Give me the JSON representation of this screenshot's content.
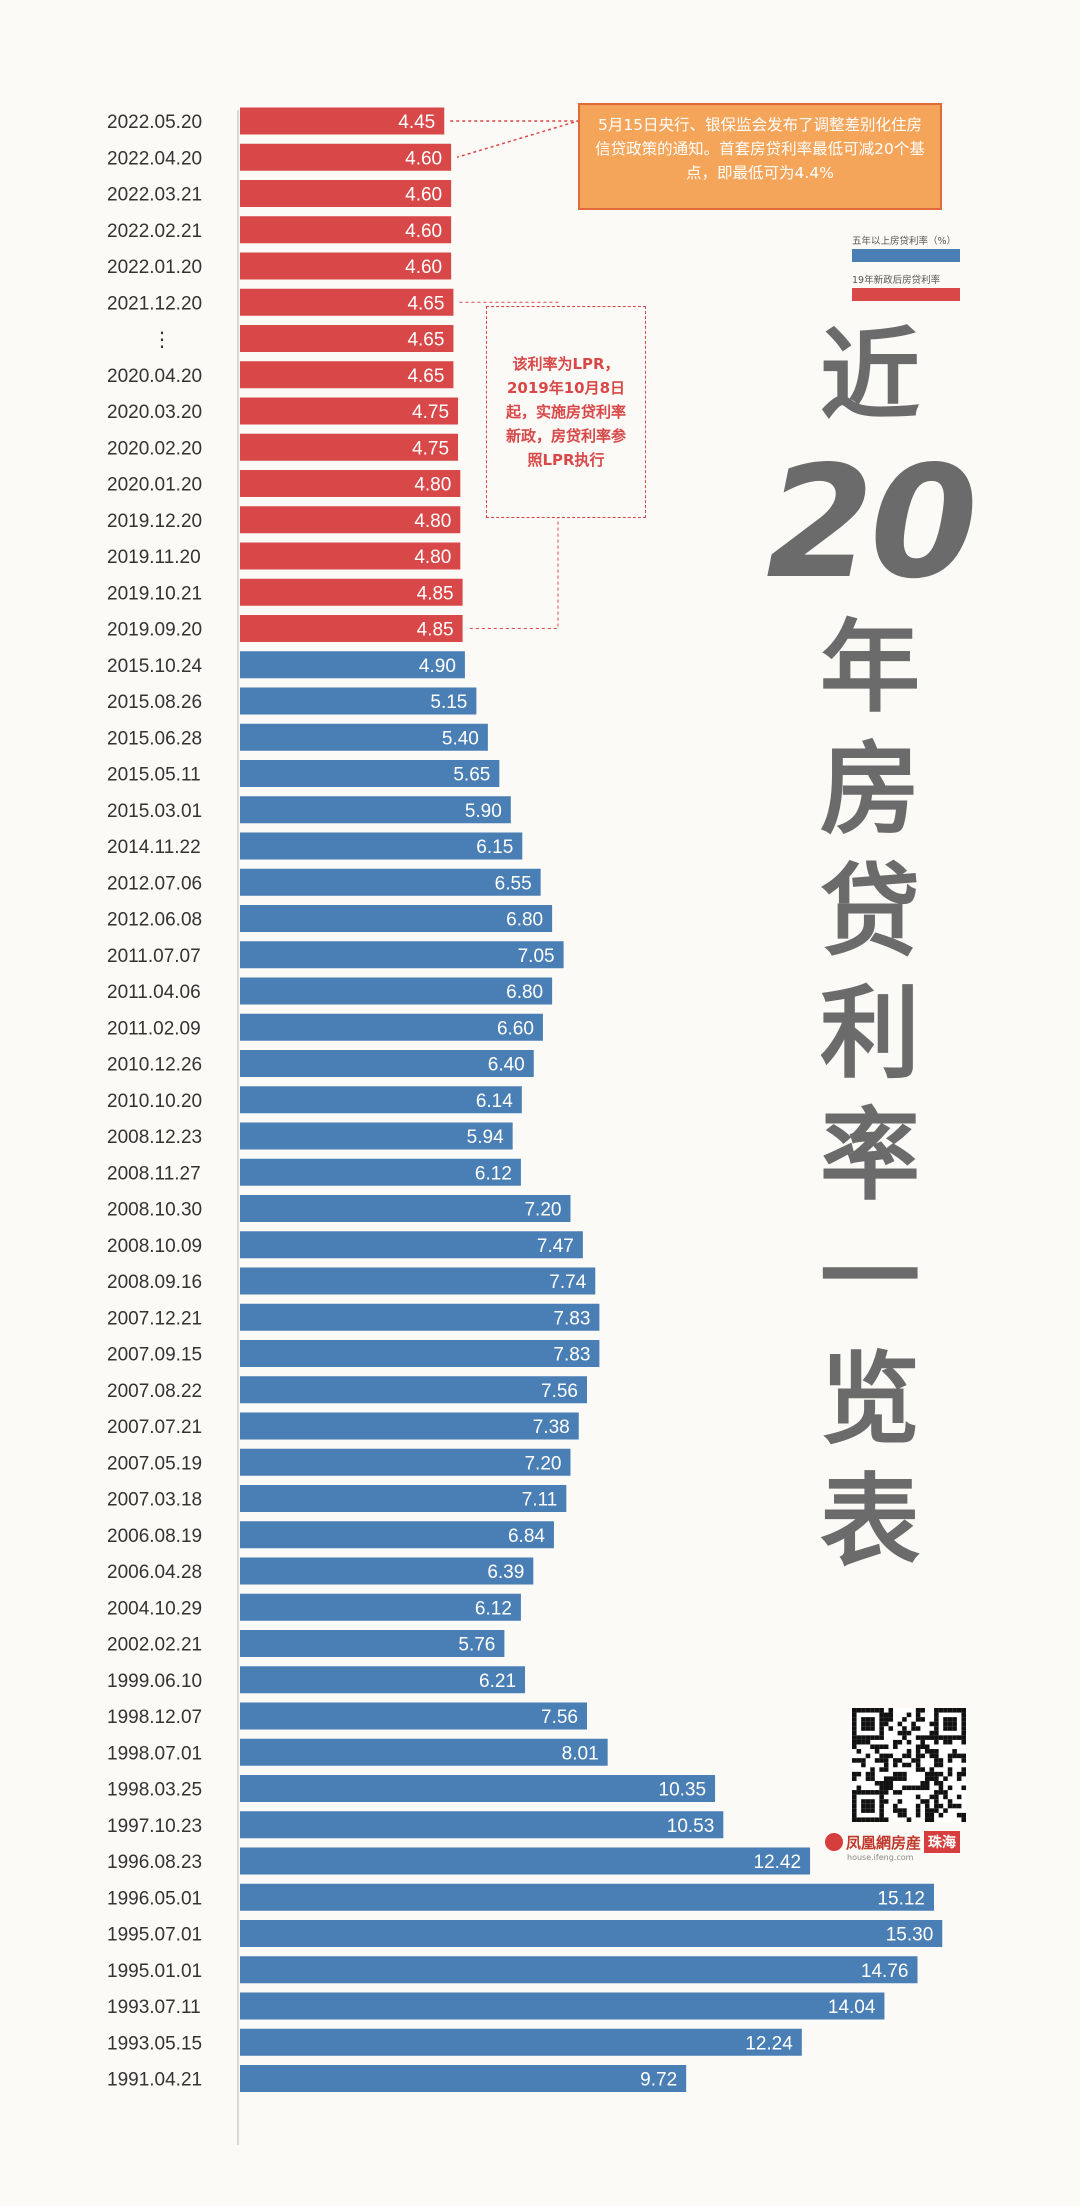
{
  "chart_data": {
    "type": "bar",
    "orientation": "horizontal",
    "title": "近20年房贷利率一览表",
    "xlim": [
      0,
      16
    ],
    "categories": [
      "2022.05.20",
      "2022.04.20",
      "2022.03.21",
      "2022.02.21",
      "2022.01.20",
      "2021.12.20",
      "⋮",
      "2020.04.20",
      "2020.03.20",
      "2020.02.20",
      "2020.01.20",
      "2019.12.20",
      "2019.11.20",
      "2019.10.21",
      "2019.09.20",
      "2015.10.24",
      "2015.08.26",
      "2015.06.28",
      "2015.05.11",
      "2015.03.01",
      "2014.11.22",
      "2012.07.06",
      "2012.06.08",
      "2011.07.07",
      "2011.04.06",
      "2011.02.09",
      "2010.12.26",
      "2010.10.20",
      "2008.12.23",
      "2008.11.27",
      "2008.10.30",
      "2008.10.09",
      "2008.09.16",
      "2007.12.21",
      "2007.09.15",
      "2007.08.22",
      "2007.07.21",
      "2007.05.19",
      "2007.03.18",
      "2006.08.19",
      "2006.04.28",
      "2004.10.29",
      "2002.02.21",
      "1999.06.10",
      "1998.12.07",
      "1998.07.01",
      "1998.03.25",
      "1997.10.23",
      "1996.08.23",
      "1996.05.01",
      "1995.07.01",
      "1995.01.01",
      "1993.07.11",
      "1993.05.15",
      "1991.04.21"
    ],
    "values": [
      4.45,
      4.6,
      4.6,
      4.6,
      4.6,
      4.65,
      4.65,
      4.65,
      4.75,
      4.75,
      4.8,
      4.8,
      4.8,
      4.85,
      4.85,
      4.9,
      5.15,
      5.4,
      5.65,
      5.9,
      6.15,
      6.55,
      6.8,
      7.05,
      6.8,
      6.6,
      6.4,
      6.14,
      5.94,
      6.12,
      7.2,
      7.47,
      7.74,
      7.83,
      7.83,
      7.56,
      7.38,
      7.2,
      7.11,
      6.84,
      6.39,
      6.12,
      5.76,
      6.21,
      7.56,
      8.01,
      10.35,
      10.53,
      12.42,
      15.12,
      15.3,
      14.76,
      14.04,
      12.24,
      9.72
    ],
    "value_labels": [
      "4.45",
      "4.60",
      "4.60",
      "4.60",
      "4.60",
      "4.65",
      "4.65",
      "4.65",
      "4.75",
      "4.75",
      "4.80",
      "4.80",
      "4.80",
      "4.85",
      "4.85",
      "4.90",
      "5.15",
      "5.40",
      "5.65",
      "5.90",
      "6.15",
      "6.55",
      "6.80",
      "7.05",
      "6.80",
      "6.60",
      "6.40",
      "6.14",
      "5.94",
      "6.12",
      "7.20",
      "7.47",
      "7.74",
      "7.83",
      "7.83",
      "7.56",
      "7.38",
      "7.20",
      "7.11",
      "6.84",
      "6.39",
      "6.12",
      "5.76",
      "6.21",
      "7.56",
      "8.01",
      "10.35",
      "10.53",
      "12.42",
      "15.12",
      "15.30",
      "14.76",
      "14.04",
      "12.24",
      "9.72"
    ],
    "series_by_bar": [
      "lpr",
      "lpr",
      "lpr",
      "lpr",
      "lpr",
      "lpr",
      "lpr",
      "lpr",
      "lpr",
      "lpr",
      "lpr",
      "lpr",
      "lpr",
      "lpr",
      "lpr",
      "base",
      "base",
      "base",
      "base",
      "base",
      "base",
      "base",
      "base",
      "base",
      "base",
      "base",
      "base",
      "base",
      "base",
      "base",
      "base",
      "base",
      "base",
      "base",
      "base",
      "base",
      "base",
      "base",
      "base",
      "base",
      "base",
      "base",
      "base",
      "base",
      "base",
      "base",
      "base",
      "base",
      "base",
      "base",
      "base",
      "base",
      "base",
      "base",
      "base"
    ],
    "legend": [
      {
        "key": "base",
        "label": "五年以上房贷利率（%）",
        "color": "#4a7fb5"
      },
      {
        "key": "lpr",
        "label": "19年新政后房贷利率",
        "color": "#d94848"
      }
    ]
  },
  "ellipsis_label": "⋮",
  "title": {
    "line1": "近",
    "number": "20",
    "rest": [
      "年",
      "房",
      "贷",
      "利",
      "率",
      "一",
      "览",
      "表"
    ]
  },
  "callout": {
    "text": "5月15日央行、银保监会发布了调整差别化住房信贷政策的通知。首套房贷利率最低可减20个基点，即最低可为4.4%"
  },
  "lpr_note": {
    "text": "该利率为LPR，2019年10月8日起，实施房贷利率新政，房贷利率参照LPR执行"
  },
  "brand": {
    "name": "凤凰網房産",
    "city": "珠海",
    "url": "house.ifeng.com"
  },
  "colors": {
    "base": "#4a7fb5",
    "lpr": "#d94848",
    "title": "#6b6b6b",
    "callout_bg": "#f5a55a",
    "axis": "#bbbbbb"
  }
}
